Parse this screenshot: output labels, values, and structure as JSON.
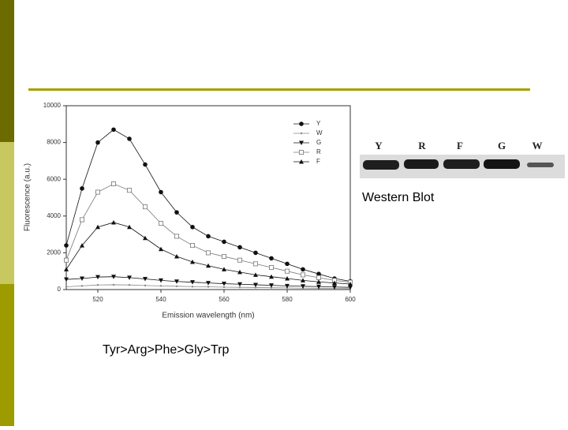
{
  "chart_data": {
    "type": "line",
    "x_label": "Emission wavelength (nm)",
    "y_label": "Fluorescence (a.u.)",
    "x": [
      510,
      515,
      520,
      525,
      530,
      535,
      540,
      545,
      550,
      555,
      560,
      565,
      570,
      575,
      580,
      585,
      590,
      595,
      600
    ],
    "series": [
      {
        "name": "Y",
        "color": "#111111",
        "marker": "circle",
        "values": [
          2400,
          5500,
          8000,
          8700,
          8200,
          6800,
          5300,
          4200,
          3400,
          2900,
          2600,
          2300,
          2000,
          1700,
          1400,
          1100,
          850,
          600,
          450
        ]
      },
      {
        "name": "W",
        "color": "#888888",
        "marker": "dot",
        "values": [
          150,
          200,
          250,
          260,
          250,
          220,
          200,
          180,
          160,
          150,
          130,
          120,
          110,
          100,
          90,
          80,
          70,
          60,
          50
        ]
      },
      {
        "name": "G",
        "color": "#111111",
        "marker": "triangle-down",
        "values": [
          550,
          600,
          680,
          700,
          650,
          580,
          500,
          440,
          400,
          360,
          320,
          290,
          260,
          230,
          200,
          180,
          160,
          140,
          120
        ]
      },
      {
        "name": "R",
        "color": "#777777",
        "marker": "square-open",
        "values": [
          1600,
          3800,
          5300,
          5750,
          5400,
          4500,
          3600,
          2900,
          2400,
          2000,
          1800,
          1600,
          1400,
          1200,
          1000,
          800,
          650,
          500,
          400
        ]
      },
      {
        "name": "F",
        "color": "#111111",
        "marker": "triangle-up",
        "values": [
          1100,
          2400,
          3400,
          3650,
          3400,
          2800,
          2200,
          1800,
          1500,
          1300,
          1100,
          950,
          800,
          700,
          600,
          500,
          420,
          360,
          300
        ]
      }
    ],
    "xlim": [
      510,
      600
    ],
    "xticks": [
      520,
      540,
      560,
      580,
      600
    ],
    "ylim": [
      0,
      10000
    ],
    "yticks": [
      0,
      2000,
      4000,
      6000,
      8000,
      10000
    ],
    "legend": "top-right"
  },
  "blot": {
    "lanes": [
      "Y",
      "R",
      "F",
      "G",
      "W"
    ],
    "caption": "Western Blot"
  },
  "ranking": "Tyr>Arg>Phe>Gly>Trp"
}
